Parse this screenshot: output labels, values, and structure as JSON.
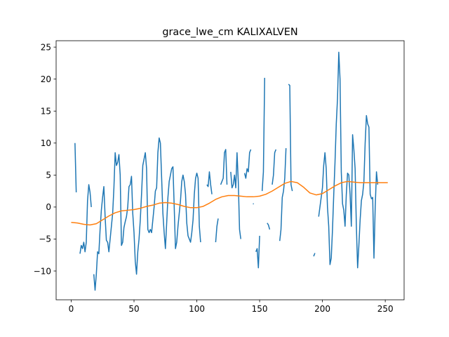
{
  "chart_data": {
    "type": "line",
    "title": "grace_lwe_cm KALIXALVEN",
    "xlabel": "",
    "ylabel": "",
    "xlim": [
      -12,
      265
    ],
    "ylim": [
      -14.5,
      26
    ],
    "x_ticks": [
      0,
      50,
      100,
      150,
      200,
      250
    ],
    "y_ticks": [
      -10,
      -5,
      0,
      5,
      10,
      15,
      20,
      25
    ],
    "grid": false,
    "legend": "none",
    "colors": {
      "raw": "#1f77b4",
      "trend": "#ff7f0e"
    },
    "series": [
      {
        "color": "#1f77b4",
        "segments": [
          [
            [
              3,
              10
            ],
            [
              4,
              2.3
            ]
          ],
          [
            [
              7,
              -7.3
            ],
            [
              8,
              -6
            ],
            [
              9,
              -6.5
            ],
            [
              10,
              -5.5
            ],
            [
              11,
              -7
            ],
            [
              12,
              -5.5
            ],
            [
              13,
              1
            ],
            [
              14,
              3.5
            ],
            [
              15,
              2.3
            ],
            [
              16,
              0
            ]
          ],
          [
            [
              18,
              -10.5
            ],
            [
              19,
              -13
            ],
            [
              20,
              -10.5
            ],
            [
              21,
              -7
            ],
            [
              22,
              -7.3
            ],
            [
              23,
              -3.5
            ],
            [
              24,
              -0.5
            ],
            [
              25,
              1.5
            ],
            [
              26,
              3.2
            ],
            [
              27,
              -1.5
            ],
            [
              28,
              -5.2
            ],
            [
              29,
              -5.5
            ],
            [
              30,
              -7
            ],
            [
              31,
              -5
            ],
            [
              32,
              -3
            ],
            [
              33,
              -1
            ],
            [
              34,
              3
            ],
            [
              35,
              8.5
            ],
            [
              36,
              6.5
            ],
            [
              37,
              7
            ],
            [
              38,
              8.2
            ],
            [
              39,
              5
            ],
            [
              40,
              -6
            ],
            [
              41,
              -5.5
            ],
            [
              42,
              -3.2
            ],
            [
              43,
              -2.3
            ],
            [
              44,
              -1.5
            ],
            [
              45,
              0
            ],
            [
              46,
              3.2
            ],
            [
              47,
              3.5
            ],
            [
              48,
              4.8
            ],
            [
              49,
              -1
            ],
            [
              50,
              -4
            ],
            [
              51,
              -8.5
            ],
            [
              52,
              -10.5
            ],
            [
              53,
              -7
            ],
            [
              54,
              -5
            ],
            [
              55,
              -2
            ],
            [
              56,
              2
            ],
            [
              57,
              6.5
            ],
            [
              58,
              7.5
            ],
            [
              59,
              8.5
            ],
            [
              60,
              6
            ],
            [
              61,
              -3.5
            ],
            [
              62,
              -4
            ],
            [
              63,
              -3.5
            ],
            [
              64,
              -4
            ],
            [
              65,
              -2
            ],
            [
              66,
              0
            ],
            [
              67,
              2.5
            ],
            [
              68,
              3
            ],
            [
              69,
              8.5
            ],
            [
              70,
              10.8
            ],
            [
              71,
              10
            ],
            [
              72,
              4.5
            ],
            [
              73,
              -1
            ],
            [
              74,
              -4
            ],
            [
              75,
              -6.5
            ],
            [
              76,
              -2.5
            ],
            [
              77,
              1.5
            ],
            [
              78,
              4
            ],
            [
              79,
              5
            ],
            [
              80,
              6
            ],
            [
              81,
              6.3
            ],
            [
              82,
              0
            ],
            [
              83,
              -6.5
            ],
            [
              84,
              -5.5
            ],
            [
              85,
              -3
            ],
            [
              86,
              -1
            ],
            [
              87,
              1
            ],
            [
              88,
              4
            ],
            [
              89,
              5
            ],
            [
              90,
              4
            ],
            [
              91,
              2
            ],
            [
              92,
              -2.5
            ],
            [
              93,
              -4.5
            ],
            [
              94,
              -5
            ],
            [
              95,
              -5.5
            ],
            [
              96,
              -4
            ],
            [
              97,
              -2
            ],
            [
              98,
              2
            ],
            [
              99,
              4.5
            ],
            [
              100,
              5.3
            ],
            [
              101,
              4.5
            ],
            [
              102,
              -3
            ],
            [
              103,
              -5.5
            ]
          ],
          [
            [
              108,
              3.5
            ],
            [
              109,
              3.2
            ],
            [
              110,
              5.5
            ],
            [
              111,
              3.5
            ],
            [
              112,
              2
            ]
          ],
          [
            [
              115,
              -5.5
            ],
            [
              116,
              -3
            ],
            [
              117,
              -1.8
            ]
          ],
          [
            [
              119,
              3.5
            ],
            [
              120,
              4
            ],
            [
              121,
              4.5
            ],
            [
              122,
              8.5
            ],
            [
              123,
              9
            ],
            [
              124,
              3.5
            ]
          ],
          [
            [
              127,
              5.5
            ],
            [
              128,
              3
            ],
            [
              129,
              3.5
            ],
            [
              130,
              5
            ],
            [
              131,
              3
            ],
            [
              132,
              8.5
            ],
            [
              133,
              4
            ],
            [
              134,
              -3.5
            ],
            [
              135,
              -5
            ]
          ],
          [
            [
              138,
              5.3
            ],
            [
              139,
              4.5
            ],
            [
              140,
              6
            ],
            [
              141,
              5.5
            ],
            [
              142,
              8.5
            ],
            [
              143,
              9
            ]
          ],
          [
            [
              145,
              0.5
            ]
          ],
          [
            [
              147,
              -7
            ],
            [
              148,
              -6.5
            ],
            [
              149,
              -9.5
            ],
            [
              150,
              -4.5
            ]
          ],
          [
            [
              152,
              2.5
            ],
            [
              153,
              5.5
            ],
            [
              154,
              20.2
            ]
          ],
          [
            [
              156,
              -2.5
            ],
            [
              157,
              -2.8
            ],
            [
              158,
              -3.5
            ]
          ],
          [
            [
              160,
              3.5
            ],
            [
              161,
              5
            ],
            [
              162,
              8.5
            ],
            [
              163,
              9
            ]
          ],
          [
            [
              166,
              -5.3
            ],
            [
              167,
              -3.5
            ],
            [
              168,
              1.5
            ],
            [
              169,
              2.5
            ],
            [
              170,
              4.5
            ],
            [
              171,
              9.2
            ]
          ],
          [
            [
              173,
              19.2
            ],
            [
              174,
              19
            ],
            [
              175,
              3.5
            ],
            [
              176,
              2.5
            ]
          ],
          [
            [
              193,
              -7.7
            ],
            [
              194,
              -7.2
            ]
          ],
          [
            [
              197,
              -1.5
            ],
            [
              198,
              0
            ],
            [
              199,
              1.5
            ],
            [
              200,
              3
            ],
            [
              201,
              6.5
            ],
            [
              202,
              8.5
            ],
            [
              203,
              6
            ],
            [
              204,
              0
            ],
            [
              205,
              -3
            ],
            [
              206,
              -9
            ],
            [
              207,
              -8
            ],
            [
              208,
              -3.5
            ],
            [
              209,
              2
            ],
            [
              210,
              7
            ],
            [
              211,
              13
            ],
            [
              212,
              17
            ],
            [
              213,
              24.2
            ],
            [
              214,
              20
            ],
            [
              215,
              5.5
            ],
            [
              216,
              0.5
            ],
            [
              217,
              -0.5
            ],
            [
              218,
              -3
            ],
            [
              219,
              2
            ],
            [
              220,
              5.3
            ],
            [
              221,
              5
            ],
            [
              222,
              2
            ],
            [
              223,
              -3
            ],
            [
              224,
              11.3
            ],
            [
              225,
              9
            ],
            [
              226,
              6
            ],
            [
              227,
              -3
            ],
            [
              228,
              -9.5
            ],
            [
              229,
              -6
            ],
            [
              230,
              -2
            ],
            [
              231,
              1
            ],
            [
              232,
              2
            ],
            [
              233,
              4
            ],
            [
              234,
              10
            ],
            [
              235,
              14.3
            ],
            [
              236,
              13
            ],
            [
              237,
              12.5
            ],
            [
              238,
              2
            ],
            [
              239,
              1.3
            ],
            [
              240,
              1.5
            ],
            [
              241,
              -8
            ],
            [
              242,
              0
            ],
            [
              243,
              5.5
            ],
            [
              244,
              3.5
            ]
          ]
        ]
      },
      {
        "color": "#ff7f0e",
        "points": [
          [
            0,
            -2.4
          ],
          [
            5,
            -2.5
          ],
          [
            10,
            -2.7
          ],
          [
            15,
            -2.8
          ],
          [
            20,
            -2.6
          ],
          [
            25,
            -2.0
          ],
          [
            30,
            -1.4
          ],
          [
            35,
            -0.9
          ],
          [
            40,
            -0.6
          ],
          [
            45,
            -0.5
          ],
          [
            50,
            -0.4
          ],
          [
            55,
            -0.2
          ],
          [
            60,
            0.1
          ],
          [
            65,
            0.3
          ],
          [
            70,
            0.6
          ],
          [
            75,
            0.7
          ],
          [
            80,
            0.6
          ],
          [
            85,
            0.4
          ],
          [
            90,
            0.1
          ],
          [
            95,
            -0.1
          ],
          [
            100,
            -0.1
          ],
          [
            105,
            0.1
          ],
          [
            110,
            0.6
          ],
          [
            115,
            1.2
          ],
          [
            120,
            1.6
          ],
          [
            125,
            1.8
          ],
          [
            130,
            1.8
          ],
          [
            135,
            1.7
          ],
          [
            140,
            1.6
          ],
          [
            145,
            1.6
          ],
          [
            150,
            1.7
          ],
          [
            155,
            2.0
          ],
          [
            160,
            2.5
          ],
          [
            165,
            3.1
          ],
          [
            170,
            3.7
          ],
          [
            175,
            4.0
          ],
          [
            180,
            3.8
          ],
          [
            185,
            3.1
          ],
          [
            190,
            2.2
          ],
          [
            195,
            1.9
          ],
          [
            200,
            2.1
          ],
          [
            205,
            2.7
          ],
          [
            210,
            3.3
          ],
          [
            215,
            3.8
          ],
          [
            220,
            4.0
          ],
          [
            225,
            3.9
          ],
          [
            230,
            3.8
          ],
          [
            235,
            3.8
          ],
          [
            240,
            3.8
          ],
          [
            245,
            3.8
          ],
          [
            250,
            3.8
          ],
          [
            252,
            3.8
          ]
        ]
      }
    ]
  }
}
